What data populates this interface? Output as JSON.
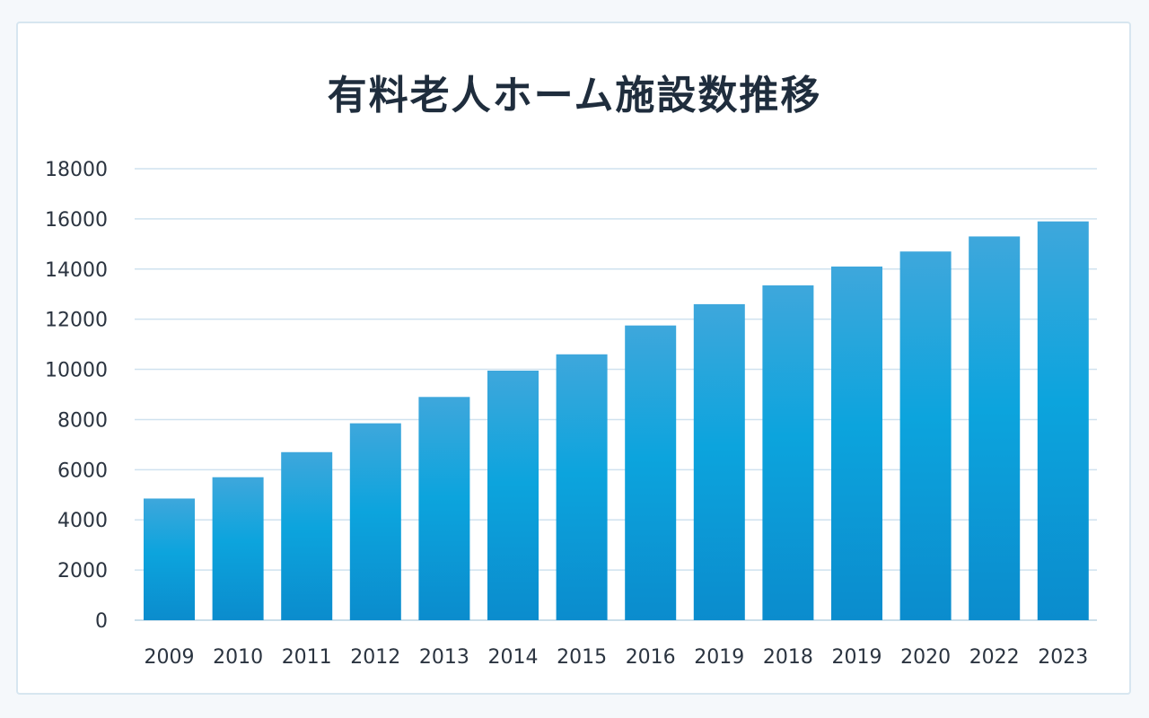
{
  "chart_data": {
    "type": "bar",
    "title": "有料老人ホーム施設数推移",
    "categories": [
      "2009",
      "2010",
      "2011",
      "2012",
      "2013",
      "2014",
      "2015",
      "2016",
      "2019",
      "2018",
      "2019",
      "2020",
      "2022",
      "2023"
    ],
    "values": [
      4850,
      5700,
      6700,
      7850,
      8900,
      9950,
      10600,
      11750,
      12600,
      13350,
      14100,
      14700,
      15300,
      15900
    ],
    "xlabel": "",
    "ylabel": "",
    "ylim": [
      0,
      18000
    ],
    "yticks": [
      "0",
      "2000",
      "4000",
      "6000",
      "8000",
      "10000",
      "12000",
      "14000",
      "16000",
      "18000"
    ],
    "grid": true,
    "colors": {
      "bar_top": "#3ea7dc",
      "bar_bottom": "#0b8ccd",
      "grid": "#cfe2ef",
      "axis": "#b9d3e4"
    }
  }
}
